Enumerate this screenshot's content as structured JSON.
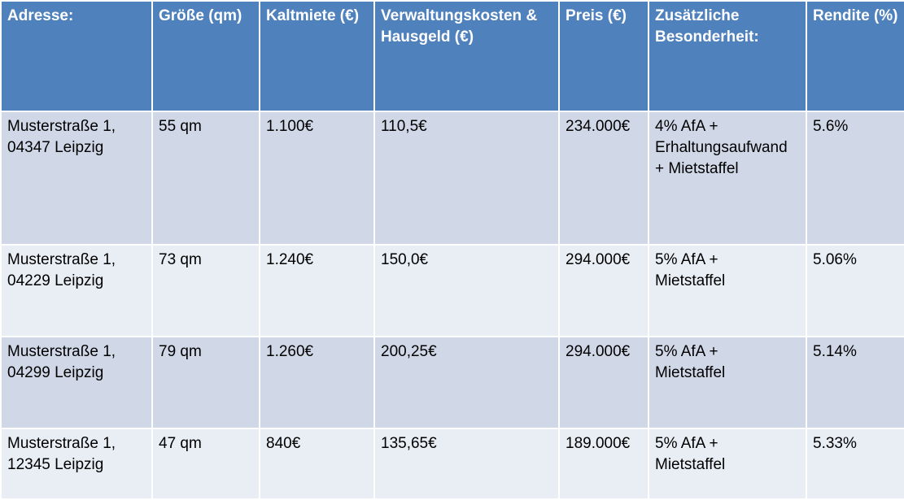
{
  "colors": {
    "header_bg": "#4f81bd",
    "row_dark": "#d0d8e8",
    "row_light": "#e9edf4",
    "header_text": "#ffffff"
  },
  "table": {
    "headers": [
      [
        "Adresse:"
      ],
      [
        "Größe (qm)"
      ],
      [
        "Kaltmiete (€)"
      ],
      [
        "Verwaltungskosten &",
        "Hausgeld (€)"
      ],
      [
        "Preis (€)"
      ],
      [
        "Zusätzliche",
        "Besonderheit:"
      ],
      [
        "Rendite (%)"
      ]
    ],
    "rows": [
      {
        "address": [
          "Musterstraße 1,",
          "04347 Leipzig"
        ],
        "size": "55 qm",
        "rent": "1.100€",
        "costs": "110,5€",
        "price": "234.000€",
        "feature": [
          "4% AfA +",
          "Erhaltungsaufwand",
          "+ Mietstaffel"
        ],
        "yield": "5.6%"
      },
      {
        "address": [
          "Musterstraße 1,",
          "04229 Leipzig"
        ],
        "size": "73 qm",
        "rent": "1.240€",
        "costs": "150,0€",
        "price": "294.000€",
        "feature": [
          "5% AfA +",
          "Mietstaffel"
        ],
        "yield": "5.06%"
      },
      {
        "address": [
          "Musterstraße 1,",
          "04299 Leipzig"
        ],
        "size": "79 qm",
        "rent": "1.260€",
        "costs": "200,25€",
        "price": "294.000€",
        "feature": [
          "5% AfA +",
          "Mietstaffel"
        ],
        "yield": "5.14%"
      },
      {
        "address": [
          "Musterstraße 1,",
          "12345 Leipzig"
        ],
        "size": "47 qm",
        "rent": "840€",
        "costs": "135,65€",
        "price": "189.000€",
        "feature": [
          "5% AfA +",
          "Mietstaffel"
        ],
        "yield": "5.33%"
      }
    ]
  }
}
